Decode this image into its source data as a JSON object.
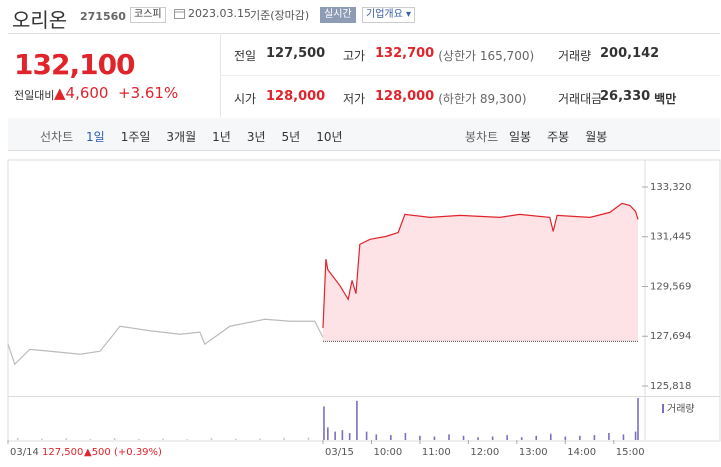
{
  "header": {
    "name": "오리온",
    "code": "271560",
    "market": "코스피",
    "date": "2023.03.15",
    "status": "기준(장마감)",
    "realtime": "실시간",
    "company_info": "기업개요"
  },
  "summary": {
    "price": "132,100",
    "change_label": "전일대비",
    "change": "▲4,600",
    "change_rate": "+3.61%",
    "items": [
      {
        "label": "전일",
        "value": "127,500"
      },
      {
        "label": "고가",
        "value": "132,700",
        "note": "(상한가 165,700)"
      },
      {
        "label": "거래량",
        "value": "200,142"
      },
      {
        "label": "시가",
        "value": "128,000"
      },
      {
        "label": "저가",
        "value": "128,000",
        "note": "(하한가 89,300)"
      },
      {
        "label": "거래대금",
        "value": "26,330",
        "unit": "백만"
      }
    ]
  },
  "tabs": {
    "line_label": "선차트",
    "line_tabs": [
      "1일",
      "1주일",
      "3개월",
      "1년",
      "3년",
      "5년",
      "10년"
    ],
    "candle_label": "봉차트",
    "candle_tabs": [
      "일봉",
      "주봉",
      "월봉"
    ]
  },
  "hover_info": {
    "price": "127,500",
    "change": "▲500",
    "rate": "(+0.39%)"
  },
  "chart_data": {
    "type": "line",
    "xlim": [
      0,
      13
    ],
    "xticks": [
      {
        "value": 0,
        "label": "03/14"
      },
      {
        "value": 6.5,
        "label": "03/15"
      },
      {
        "value": 7.5,
        "label": "10:00"
      },
      {
        "value": 8.5,
        "label": "11:00"
      },
      {
        "value": 9.5,
        "label": "12:00"
      },
      {
        "value": 10.5,
        "label": "13:00"
      },
      {
        "value": 11.5,
        "label": "14:00"
      },
      {
        "value": 12.5,
        "label": "15:00"
      }
    ],
    "ylim": [
      125479,
      134338
    ],
    "yticks": [
      {
        "value": 125818,
        "label": "125,818"
      },
      {
        "value": 127694,
        "label": "127,694"
      },
      {
        "value": 129569,
        "label": "129,569"
      },
      {
        "value": 131445,
        "label": "131,445"
      },
      {
        "value": 133320,
        "label": "133,320"
      }
    ],
    "previous_close": 127500,
    "series": [
      {
        "color": "#bbbbbb",
        "x": [
          0,
          0.14,
          0.45,
          0.87,
          1.49,
          1.9,
          2.31,
          2.93,
          3.55,
          3.96,
          4.06,
          4.58,
          5.3,
          5.82,
          6.33,
          6.5
        ],
        "values": [
          127393,
          126640,
          127200,
          127129,
          127016,
          127129,
          128071,
          127900,
          127769,
          127850,
          127393,
          128071,
          128334,
          128259,
          128259,
          127650
        ]
      },
      {
        "color": "#e0242b",
        "x": [
          6.5,
          6.56,
          6.6,
          6.85,
          7.02,
          7.1,
          7.18,
          7.26,
          7.47,
          7.78,
          8.05,
          8.19,
          8.71,
          9.33,
          10.15,
          10.56,
          11.18,
          11.25,
          11.33,
          12.01,
          12.42,
          12.52,
          12.67,
          12.83,
          12.95,
          13
        ],
        "values": [
          128000,
          130600,
          130200,
          129600,
          129087,
          129800,
          129300,
          131159,
          131347,
          131450,
          131600,
          132288,
          132175,
          132251,
          132175,
          132288,
          132175,
          131648,
          132250,
          132175,
          132363,
          132500,
          132700,
          132627,
          132400,
          132100
        ]
      }
    ],
    "volume": {
      "name": "거래량",
      "vlim": [
        0,
        30000
      ],
      "x": [
        0.2,
        0.7,
        1.2,
        1.7,
        2.2,
        2.7,
        3.2,
        3.7,
        4.2,
        4.7,
        5.2,
        5.7,
        6.2,
        6.52,
        6.6,
        6.75,
        6.9,
        7.05,
        7.2,
        7.4,
        7.6,
        7.9,
        8.2,
        8.5,
        8.8,
        9.1,
        9.4,
        9.7,
        10.0,
        10.3,
        10.6,
        10.9,
        11.2,
        11.5,
        11.8,
        12.1,
        12.4,
        12.7,
        12.95,
        13.0
      ],
      "values": [
        1500,
        900,
        1200,
        700,
        1400,
        800,
        1000,
        600,
        1300,
        900,
        1100,
        1600,
        1800,
        24000,
        9000,
        6000,
        7000,
        5000,
        28000,
        6000,
        4000,
        3500,
        5000,
        3000,
        2500,
        4000,
        3000,
        2000,
        2500,
        3500,
        2000,
        3000,
        4500,
        2500,
        3000,
        3500,
        5000,
        4000,
        6000,
        30000
      ]
    }
  }
}
